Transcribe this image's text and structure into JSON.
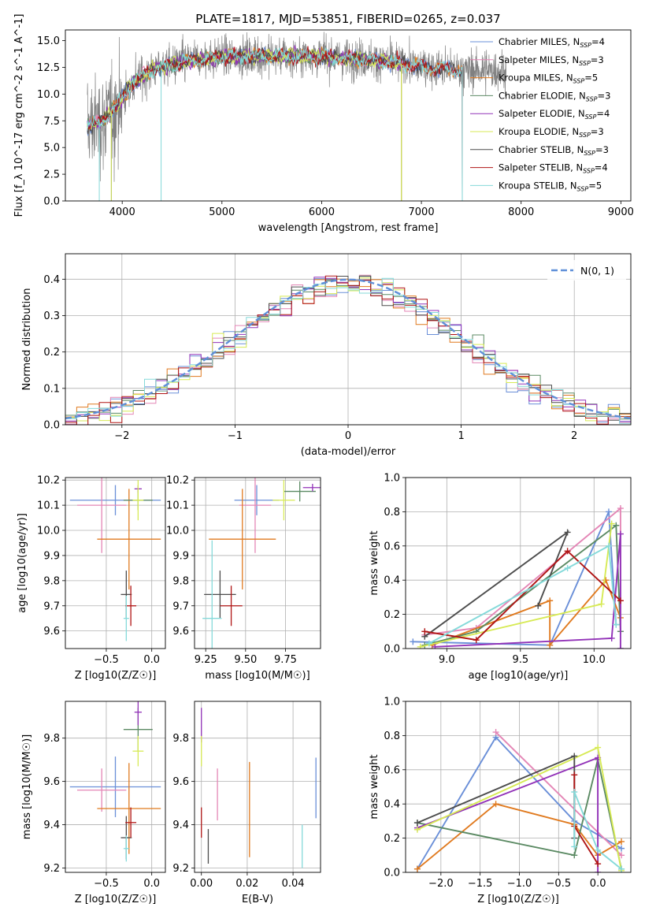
{
  "figure_title": "PLATE=1817, MJD=53851, FIBERID=0265, z=0.037",
  "colors": {
    "c0": "#6a8fd8",
    "c1": "#e486b6",
    "c2": "#e07a1f",
    "c3": "#5b8a63",
    "c4": "#9232b8",
    "c5": "#d7ea55",
    "c6": "#4d4d4d",
    "c7": "#b01515",
    "c8": "#85dada",
    "gauss": "#5f8fd8"
  },
  "models": [
    {
      "name": "Chabrier MILES",
      "nssp": "4",
      "color": "#6a8fd8"
    },
    {
      "name": "Salpeter MILES",
      "nssp": "3",
      "color": "#e486b6"
    },
    {
      "name": "Kroupa MILES",
      "nssp": "5",
      "color": "#e07a1f"
    },
    {
      "name": "Chabrier ELODIE",
      "nssp": "3",
      "color": "#5b8a63"
    },
    {
      "name": "Salpeter ELODIE",
      "nssp": "4",
      "color": "#9232b8"
    },
    {
      "name": "Kroupa ELODIE",
      "nssp": "3",
      "color": "#d7ea55"
    },
    {
      "name": "Chabrier STELIB",
      "nssp": "3",
      "color": "#4d4d4d"
    },
    {
      "name": "Salpeter STELIB",
      "nssp": "4",
      "color": "#b01515"
    },
    {
      "name": "Kroupa STELIB",
      "nssp": "5",
      "color": "#85dada"
    }
  ],
  "chart_data": [
    {
      "id": "spectrum",
      "type": "line",
      "xlabel": "wavelength [Angstrom, rest frame]",
      "ylabel": "Flux [f_λ 10^-17 erg cm^-2 s^-1 A^-1]",
      "xlim": [
        3430,
        9100
      ],
      "ylim": [
        0,
        16
      ],
      "xticks": [
        4000,
        5000,
        6000,
        7000,
        8000,
        9000
      ],
      "yticks": [
        0.0,
        2.5,
        5.0,
        7.5,
        10.0,
        12.5,
        15.0
      ],
      "ytick_labels": [
        "0.0",
        "2.5",
        "5.0",
        "7.5",
        "10.0",
        "12.5",
        "15.0"
      ],
      "grid": false,
      "legend": "right",
      "observed_range": [
        3650,
        7850
      ],
      "model_continuum": [
        [
          3650,
          7.0
        ],
        [
          3800,
          7.5
        ],
        [
          3950,
          9.0
        ],
        [
          4100,
          11.0
        ],
        [
          4300,
          12.3
        ],
        [
          4600,
          13.0
        ],
        [
          5000,
          13.5
        ],
        [
          5500,
          13.6
        ],
        [
          6000,
          13.5
        ],
        [
          6500,
          13.2
        ],
        [
          7000,
          12.6
        ],
        [
          7400,
          12.2
        ]
      ],
      "model_cutoff_wavelength": [
        7410,
        7410,
        7410,
        7410,
        7410,
        7410,
        7410,
        7410,
        7410
      ],
      "model_ranges": [
        [
          3650,
          7410
        ],
        [
          3650,
          7410
        ],
        [
          3650,
          7410
        ],
        [
          3650,
          6800
        ],
        [
          3650,
          6800
        ],
        [
          3650,
          6800
        ],
        [
          3650,
          7410
        ],
        [
          3650,
          7410
        ],
        [
          3650,
          7410
        ]
      ]
    },
    {
      "id": "residuals",
      "type": "histogram",
      "xlabel": "(data-model)/error",
      "ylabel": "Normed distribution",
      "xlim": [
        -2.5,
        2.5
      ],
      "ylim": [
        0,
        0.47
      ],
      "xticks": [
        -2,
        -1,
        0,
        1,
        2
      ],
      "xtick_labels": [
        "−2",
        "−1",
        "0",
        "1",
        "2"
      ],
      "yticks": [
        0.0,
        0.1,
        0.2,
        0.3,
        0.4
      ],
      "ytick_labels": [
        "0.0",
        "0.1",
        "0.2",
        "0.3",
        "0.4"
      ],
      "grid": true,
      "legend": "top-right",
      "legend_label": "N(0, 1)",
      "bin_width": 0.1,
      "bin_start": -2.5,
      "curve": "normal pdf, mean 0, sigma 1"
    },
    {
      "id": "age_vs_z",
      "type": "scatter",
      "xlabel": "Z [log10(Z/Z☉)]",
      "ylabel": "age [log10(age/yr)]",
      "xlim": [
        -0.95,
        0.15
      ],
      "ylim": [
        9.53,
        10.21
      ],
      "xticks": [
        -0.5,
        0.0
      ],
      "xtick_labels": [
        "−0.5",
        "0.0"
      ],
      "yticks": [
        9.6,
        9.7,
        9.8,
        9.9,
        10.0,
        10.1,
        10.2
      ],
      "ytick_labels": [
        "9.6",
        "9.7",
        "9.8",
        "9.9",
        "10.0",
        "10.1",
        "10.2"
      ],
      "grid": true,
      "points": [
        {
          "x": -0.4,
          "y": 10.12,
          "xerr": 0.5,
          "yerr": 0.06,
          "c": 0
        },
        {
          "x": -0.55,
          "y": 10.1,
          "xerr": 0.27,
          "yerr": 0.19,
          "c": 1
        },
        {
          "x": -0.25,
          "y": 9.965,
          "xerr": 0.35,
          "yerr": 0.2,
          "c": 2
        },
        {
          "x": -0.15,
          "y": 10.12,
          "xerr": 0.16,
          "yerr": 0.04,
          "c": 3
        },
        {
          "x": -0.15,
          "y": 10.165,
          "xerr": 0.04,
          "yerr": 0.015,
          "c": 4
        },
        {
          "x": -0.15,
          "y": 10.12,
          "xerr": 0.06,
          "yerr": 0.08,
          "c": 5
        },
        {
          "x": -0.28,
          "y": 9.745,
          "xerr": 0.06,
          "yerr": 0.095,
          "c": 6
        },
        {
          "x": -0.23,
          "y": 9.7,
          "xerr": 0.06,
          "yerr": 0.08,
          "c": 7
        },
        {
          "x": -0.28,
          "y": 9.65,
          "xerr": 0.03,
          "yerr": 0.09,
          "c": 8
        }
      ]
    },
    {
      "id": "age_vs_mass",
      "type": "scatter",
      "xlabel": "mass [log10(M/M☉)]",
      "ylabel": "",
      "xlim": [
        9.18,
        9.97
      ],
      "ylim": [
        9.53,
        10.21
      ],
      "xticks": [
        9.25,
        9.5,
        9.75
      ],
      "xtick_labels": [
        "9.25",
        "9.50",
        "9.75"
      ],
      "yticks": [
        9.6,
        9.7,
        9.8,
        9.9,
        10.0,
        10.1,
        10.2
      ],
      "ytick_labels": [
        "9.6",
        "9.7",
        "9.8",
        "9.9",
        "10.0",
        "10.1",
        "10.2"
      ],
      "grid": true,
      "points": [
        {
          "x": 9.57,
          "y": 10.12,
          "xerr": 0.14,
          "yerr": 0.06,
          "c": 0
        },
        {
          "x": 9.56,
          "y": 10.1,
          "xerr": 0.1,
          "yerr": 0.19,
          "c": 1
        },
        {
          "x": 9.48,
          "y": 9.965,
          "xerr": 0.21,
          "yerr": 0.2,
          "c": 2
        },
        {
          "x": 9.84,
          "y": 10.155,
          "xerr": 0.1,
          "yerr": 0.04,
          "c": 3
        },
        {
          "x": 9.92,
          "y": 10.17,
          "xerr": 0.06,
          "yerr": 0.015,
          "c": 4
        },
        {
          "x": 9.74,
          "y": 10.12,
          "xerr": 0.07,
          "yerr": 0.08,
          "c": 5
        },
        {
          "x": 9.34,
          "y": 9.745,
          "xerr": 0.1,
          "yerr": 0.095,
          "c": 6
        },
        {
          "x": 9.41,
          "y": 9.7,
          "xerr": 0.07,
          "yerr": 0.08,
          "c": 7
        },
        {
          "x": 9.29,
          "y": 9.65,
          "xerr": 0.06,
          "yerr": 0.31,
          "c": 8
        }
      ]
    },
    {
      "id": "weight_vs_age",
      "type": "line",
      "xlabel": "age [log10(age/yr)]",
      "ylabel": "mass weight",
      "xlim": [
        8.72,
        10.25
      ],
      "ylim": [
        0,
        1
      ],
      "xticks": [
        9.0,
        9.5,
        10.0
      ],
      "xtick_labels": [
        "9.0",
        "9.5",
        "10.0"
      ],
      "yticks": [
        0.0,
        0.2,
        0.4,
        0.6,
        0.8,
        1.0
      ],
      "ytick_labels": [
        "0.0",
        "0.2",
        "0.4",
        "0.6",
        "0.8",
        "1.0"
      ],
      "grid": true,
      "series": [
        {
          "c": 0,
          "points": [
            [
              8.77,
              0.04
            ],
            [
              9.7,
              0.02
            ],
            [
              10.1,
              0.8
            ],
            [
              10.15,
              0.14
            ]
          ]
        },
        {
          "c": 1,
          "points": [
            [
              8.85,
              0.08
            ],
            [
              9.2,
              0.12
            ],
            [
              10.18,
              0.82
            ],
            [
              10.18,
              0.1
            ]
          ]
        },
        {
          "c": 2,
          "points": [
            [
              8.9,
              0.02
            ],
            [
              9.7,
              0.28
            ],
            [
              9.7,
              0.02
            ],
            [
              10.08,
              0.4
            ],
            [
              10.18,
              0.18
            ]
          ]
        },
        {
          "c": 3,
          "points": [
            [
              8.85,
              0.02
            ],
            [
              9.2,
              0.1
            ],
            [
              10.15,
              0.72
            ],
            [
              10.18,
              0.1
            ]
          ]
        },
        {
          "c": 4,
          "points": [
            [
              8.92,
              0.01
            ],
            [
              10.12,
              0.06
            ],
            [
              10.18,
              0.67
            ],
            [
              10.18,
              0.0
            ]
          ]
        },
        {
          "c": 5,
          "points": [
            [
              8.82,
              0.01
            ],
            [
              10.05,
              0.26
            ],
            [
              10.12,
              0.73
            ]
          ]
        },
        {
          "c": 6,
          "points": [
            [
              8.85,
              0.07
            ],
            [
              9.82,
              0.68
            ],
            [
              9.62,
              0.25
            ]
          ]
        },
        {
          "c": 7,
          "points": [
            [
              8.85,
              0.1
            ],
            [
              9.2,
              0.05
            ],
            [
              9.82,
              0.57
            ],
            [
              10.18,
              0.28
            ]
          ]
        },
        {
          "c": 8,
          "points": [
            [
              8.88,
              0.03
            ],
            [
              9.82,
              0.47
            ],
            [
              10.1,
              0.6
            ],
            [
              10.15,
              0.14
            ]
          ]
        }
      ]
    },
    {
      "id": "mass_vs_z",
      "type": "scatter",
      "xlabel": "Z [log10(Z/Z☉)]",
      "ylabel": "mass [log10(M/M☉)]",
      "xlim": [
        -0.95,
        0.15
      ],
      "ylim": [
        9.18,
        9.97
      ],
      "xticks": [
        -0.5,
        0.0
      ],
      "xtick_labels": [
        "−0.5",
        "0.0"
      ],
      "yticks": [
        9.2,
        9.4,
        9.6,
        9.8
      ],
      "ytick_labels": [
        "9.2",
        "9.4",
        "9.6",
        "9.8"
      ],
      "grid": true,
      "points": [
        {
          "x": -0.4,
          "y": 9.575,
          "xerr": 0.5,
          "yerr": 0.14,
          "c": 0
        },
        {
          "x": -0.55,
          "y": 9.56,
          "xerr": 0.27,
          "yerr": 0.1,
          "c": 1
        },
        {
          "x": -0.25,
          "y": 9.475,
          "xerr": 0.35,
          "yerr": 0.21,
          "c": 2
        },
        {
          "x": -0.15,
          "y": 9.84,
          "xerr": 0.16,
          "yerr": 0.1,
          "c": 3
        },
        {
          "x": -0.15,
          "y": 9.92,
          "xerr": 0.04,
          "yerr": 0.06,
          "c": 4
        },
        {
          "x": -0.15,
          "y": 9.74,
          "xerr": 0.06,
          "yerr": 0.07,
          "c": 5
        },
        {
          "x": -0.28,
          "y": 9.34,
          "xerr": 0.06,
          "yerr": 0.1,
          "c": 6
        },
        {
          "x": -0.23,
          "y": 9.41,
          "xerr": 0.06,
          "yerr": 0.07,
          "c": 7
        },
        {
          "x": -0.28,
          "y": 9.29,
          "xerr": 0.03,
          "yerr": 0.06,
          "c": 8
        }
      ]
    },
    {
      "id": "mass_vs_ebv",
      "type": "scatter",
      "xlabel": "E(B-V)",
      "ylabel": "",
      "xlim": [
        -0.003,
        0.052
      ],
      "ylim": [
        9.18,
        9.97
      ],
      "xticks": [
        0.0,
        0.02,
        0.04
      ],
      "xtick_labels": [
        "0.00",
        "0.02",
        "0.04"
      ],
      "yticks": [
        9.2,
        9.4,
        9.6,
        9.8
      ],
      "ytick_labels": [
        "9.2",
        "9.4",
        "9.6",
        "9.8"
      ],
      "grid": true,
      "points": [
        {
          "x": 0.05,
          "y": 9.57,
          "xerr": 0,
          "yerr": 0.14,
          "c": 0
        },
        {
          "x": 0.007,
          "y": 9.54,
          "xerr": 0,
          "yerr": 0.12,
          "c": 1
        },
        {
          "x": 0.021,
          "y": 9.47,
          "xerr": 0,
          "yerr": 0.22,
          "c": 2
        },
        {
          "x": 0.0,
          "y": 9.86,
          "xerr": 0,
          "yerr": 0.08,
          "c": 4
        },
        {
          "x": 0.0,
          "y": 9.74,
          "xerr": 0,
          "yerr": 0.07,
          "c": 5
        },
        {
          "x": 0.003,
          "y": 9.3,
          "xerr": 0,
          "yerr": 0.08,
          "c": 6
        },
        {
          "x": 0.0,
          "y": 9.41,
          "xerr": 0,
          "yerr": 0.07,
          "c": 7
        },
        {
          "x": 0.044,
          "y": 9.3,
          "xerr": 0,
          "yerr": 0.1,
          "c": 8
        }
      ]
    },
    {
      "id": "weight_vs_z",
      "type": "line",
      "xlabel": "Z [log10(Z/Z☉)]",
      "ylabel": "mass weight",
      "xlim": [
        -2.45,
        0.42
      ],
      "ylim": [
        0,
        1
      ],
      "xticks": [
        -2.0,
        -1.5,
        -1.0,
        -0.5,
        0.0
      ],
      "xtick_labels": [
        "−2.0",
        "−1.5",
        "−1.0",
        "−0.5",
        "0.0"
      ],
      "yticks": [
        0.0,
        0.2,
        0.4,
        0.6,
        0.8,
        1.0
      ],
      "ytick_labels": [
        "0.0",
        "0.2",
        "0.4",
        "0.6",
        "0.8",
        "1.0"
      ],
      "grid": true,
      "series": [
        {
          "c": 0,
          "points": [
            [
              -2.3,
              0.02
            ],
            [
              -1.3,
              0.79
            ],
            [
              -0.3,
              0.3
            ],
            [
              0.3,
              0.14
            ]
          ]
        },
        {
          "c": 1,
          "points": [
            [
              -1.3,
              0.82
            ],
            [
              0.3,
              0.1
            ]
          ]
        },
        {
          "c": 2,
          "points": [
            [
              -2.3,
              0.02
            ],
            [
              -1.3,
              0.4
            ],
            [
              -0.3,
              0.28
            ],
            [
              0.0,
              0.1
            ],
            [
              0.3,
              0.18
            ]
          ]
        },
        {
          "c": 3,
          "points": [
            [
              -2.3,
              0.29
            ],
            [
              -0.3,
              0.1
            ],
            [
              0.0,
              0.66
            ],
            [
              0.3,
              0.02
            ]
          ]
        },
        {
          "c": 4,
          "points": [
            [
              -2.3,
              0.26
            ],
            [
              0.0,
              0.67
            ],
            [
              0.0,
              0.0
            ]
          ]
        },
        {
          "c": 5,
          "points": [
            [
              -2.3,
              0.25
            ],
            [
              0.0,
              0.73
            ],
            [
              0.3,
              0.01
            ]
          ]
        },
        {
          "c": 6,
          "points": [
            [
              -2.3,
              0.29
            ],
            [
              -0.3,
              0.68
            ],
            [
              -0.3,
              0.2
            ]
          ]
        },
        {
          "c": 7,
          "points": [
            [
              -0.3,
              0.57
            ],
            [
              -0.3,
              0.27
            ],
            [
              0.0,
              0.05
            ]
          ]
        },
        {
          "c": 8,
          "points": [
            [
              -0.3,
              0.15
            ],
            [
              -0.3,
              0.47
            ],
            [
              0.0,
              0.13
            ],
            [
              0.3,
              0.02
            ]
          ]
        }
      ]
    }
  ]
}
